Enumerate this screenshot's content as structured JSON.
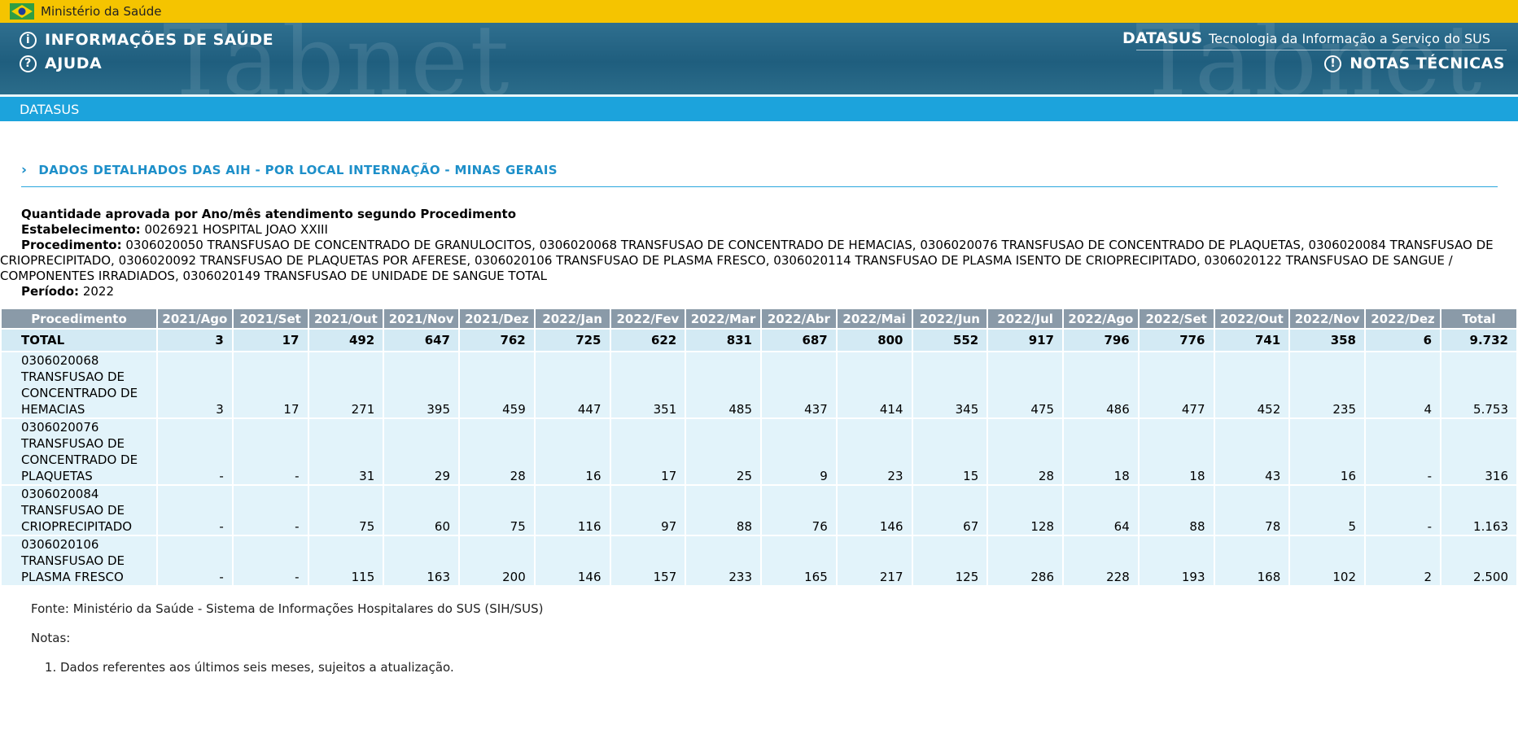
{
  "govbar": {
    "label": "Ministério da Saúde"
  },
  "header": {
    "info_label": "INFORMAÇÕES DE SAÚDE",
    "help_label": "AJUDA",
    "datasus_brand": "DATASUS",
    "datasus_tagline": "Tecnologia da Informação a Serviço do SUS",
    "notes_label": "NOTAS TÉCNICAS",
    "watermark": "Tabnet"
  },
  "strip": {
    "label": "DATASUS"
  },
  "section": {
    "title": "DADOS DETALHADOS DAS AIH - POR LOCAL INTERNAÇÃO - MINAS GERAIS"
  },
  "desc": {
    "line1": "Quantidade aprovada por Ano/mês atendimento segundo Procedimento",
    "estab_label": "Estabelecimento:",
    "estab_value": "0026921 HOSPITAL JOAO XXIII",
    "proc_label": "Procedimento:",
    "proc_value": "0306020050 TRANSFUSAO DE CONCENTRADO DE GRANULOCITOS, 0306020068 TRANSFUSAO DE CONCENTRADO DE HEMACIAS, 0306020076 TRANSFUSAO DE CONCENTRADO DE PLAQUETAS, 0306020084 TRANSFUSAO DE CRIOPRECIPITADO, 0306020092 TRANSFUSAO DE PLAQUETAS POR AFERESE, 0306020106 TRANSFUSAO DE PLASMA FRESCO, 0306020114 TRANSFUSAO DE PLASMA ISENTO DE CRIOPRECIPITADO, 0306020122 TRANSFUSAO DE SANGUE / COMPONENTES IRRADIADOS, 0306020149 TRANSFUSAO DE UNIDADE DE SANGUE TOTAL",
    "period_label": "Período:",
    "period_value": "2022"
  },
  "table": {
    "headers": [
      "Procedimento",
      "2021/Ago",
      "2021/Set",
      "2021/Out",
      "2021/Nov",
      "2021/Dez",
      "2022/Jan",
      "2022/Fev",
      "2022/Mar",
      "2022/Abr",
      "2022/Mai",
      "2022/Jun",
      "2022/Jul",
      "2022/Ago",
      "2022/Set",
      "2022/Out",
      "2022/Nov",
      "2022/Dez",
      "Total"
    ],
    "total_row": [
      "TOTAL",
      "3",
      "17",
      "492",
      "647",
      "762",
      "725",
      "622",
      "831",
      "687",
      "800",
      "552",
      "917",
      "796",
      "776",
      "741",
      "358",
      "6",
      "9.732"
    ],
    "rows": [
      [
        "0306020068 TRANSFUSAO DE CONCENTRADO DE HEMACIAS",
        "3",
        "17",
        "271",
        "395",
        "459",
        "447",
        "351",
        "485",
        "437",
        "414",
        "345",
        "475",
        "486",
        "477",
        "452",
        "235",
        "4",
        "5.753"
      ],
      [
        "0306020076 TRANSFUSAO DE CONCENTRADO DE PLAQUETAS",
        "-",
        "-",
        "31",
        "29",
        "28",
        "16",
        "17",
        "25",
        "9",
        "23",
        "15",
        "28",
        "18",
        "18",
        "43",
        "16",
        "-",
        "316"
      ],
      [
        "0306020084 TRANSFUSAO DE CRIOPRECIPITADO",
        "-",
        "-",
        "75",
        "60",
        "75",
        "116",
        "97",
        "88",
        "76",
        "146",
        "67",
        "128",
        "64",
        "88",
        "78",
        "5",
        "-",
        "1.163"
      ],
      [
        "0306020106 TRANSFUSAO DE PLASMA FRESCO",
        "-",
        "-",
        "115",
        "163",
        "200",
        "146",
        "157",
        "233",
        "165",
        "217",
        "125",
        "286",
        "228",
        "193",
        "168",
        "102",
        "2",
        "2.500"
      ]
    ]
  },
  "footer": {
    "source": "Fonte: Ministério da Saúde - Sistema de Informações Hospitalares do SUS (SIH/SUS)",
    "notes_label": "Notas:",
    "notes": [
      "Dados referentes aos últimos seis meses, sujeitos a atualização."
    ]
  }
}
